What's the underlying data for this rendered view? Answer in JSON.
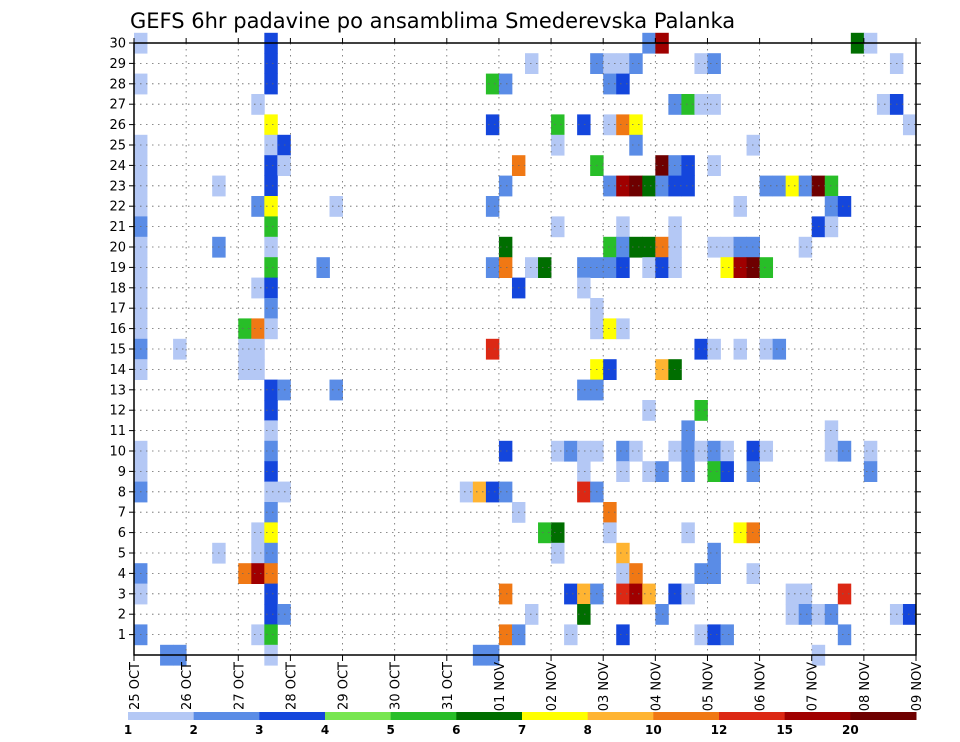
{
  "chart_data": {
    "type": "heatmap",
    "title": "GEFS 6hr padavine po ansamblima Smederevska Palanka",
    "x_tick_labels": [
      "25 OCT",
      "26 OCT",
      "27 OCT",
      "28 OCT",
      "29 OCT",
      "30 OCT",
      "31 OCT",
      "01 NOV",
      "02 NOV",
      "03 NOV",
      "04 NOV",
      "05 NOV",
      "06 NOV",
      "07 NOV",
      "08 NOV",
      "09 NOV"
    ],
    "y_tick_labels": [
      "1",
      "2",
      "3",
      "4",
      "5",
      "6",
      "7",
      "8",
      "9",
      "10",
      "11",
      "12",
      "13",
      "14",
      "15",
      "16",
      "17",
      "18",
      "19",
      "20",
      "21",
      "22",
      "23",
      "24",
      "25",
      "26",
      "27",
      "28",
      "29",
      "30"
    ],
    "xlim": [
      0,
      60
    ],
    "ylim": [
      0,
      30
    ],
    "grid": true,
    "legend": {
      "placement": "bottom",
      "labels": [
        "1",
        "2",
        "3",
        "4",
        "5",
        "6",
        "7",
        "8",
        "10",
        "12",
        "15",
        "20"
      ],
      "colors": [
        "#b4c8f5",
        "#5a8ce6",
        "#1446dc",
        "#78e650",
        "#28be28",
        "#006e00",
        "#ffff00",
        "#ffb432",
        "#f07814",
        "#dc2814",
        "#a00000",
        "#6e0000"
      ]
    },
    "cells": [
      [
        0,
        30,
        1
      ],
      [
        10,
        30,
        3
      ],
      [
        39,
        30,
        2
      ],
      [
        40,
        30,
        15
      ],
      [
        55,
        30,
        6
      ],
      [
        56,
        30,
        1
      ],
      [
        10,
        29,
        3
      ],
      [
        30,
        29,
        1
      ],
      [
        35,
        29,
        2
      ],
      [
        36,
        29,
        1
      ],
      [
        37,
        29,
        1
      ],
      [
        38,
        29,
        2
      ],
      [
        43,
        29,
        1
      ],
      [
        44,
        29,
        2
      ],
      [
        58,
        29,
        1
      ],
      [
        0,
        28,
        1
      ],
      [
        10,
        28,
        3
      ],
      [
        27,
        28,
        5
      ],
      [
        28,
        28,
        2
      ],
      [
        36,
        28,
        2
      ],
      [
        37,
        28,
        3
      ],
      [
        9,
        27,
        1
      ],
      [
        41,
        27,
        2
      ],
      [
        42,
        27,
        5
      ],
      [
        43,
        27,
        1
      ],
      [
        44,
        27,
        1
      ],
      [
        57,
        27,
        1
      ],
      [
        58,
        27,
        3
      ],
      [
        10,
        26,
        7
      ],
      [
        27,
        26,
        3
      ],
      [
        32,
        26,
        5
      ],
      [
        34,
        26,
        3
      ],
      [
        36,
        26,
        1
      ],
      [
        37,
        26,
        10
      ],
      [
        38,
        26,
        7
      ],
      [
        59,
        26,
        1
      ],
      [
        0,
        25,
        1
      ],
      [
        10,
        25,
        1
      ],
      [
        11,
        25,
        3
      ],
      [
        32,
        25,
        1
      ],
      [
        38,
        25,
        2
      ],
      [
        47,
        25,
        1
      ],
      [
        0,
        24,
        1
      ],
      [
        10,
        24,
        3
      ],
      [
        11,
        24,
        1
      ],
      [
        29,
        24,
        10
      ],
      [
        35,
        24,
        5
      ],
      [
        40,
        24,
        20
      ],
      [
        41,
        24,
        2
      ],
      [
        42,
        24,
        3
      ],
      [
        44,
        24,
        1
      ],
      [
        0,
        23,
        1
      ],
      [
        6,
        23,
        1
      ],
      [
        10,
        23,
        3
      ],
      [
        28,
        23,
        2
      ],
      [
        36,
        23,
        2
      ],
      [
        37,
        23,
        15
      ],
      [
        38,
        23,
        20
      ],
      [
        39,
        23,
        6
      ],
      [
        40,
        23,
        2
      ],
      [
        41,
        23,
        3
      ],
      [
        42,
        23,
        3
      ],
      [
        48,
        23,
        2
      ],
      [
        49,
        23,
        2
      ],
      [
        50,
        23,
        7
      ],
      [
        51,
        23,
        2
      ],
      [
        52,
        23,
        20
      ],
      [
        53,
        23,
        5
      ],
      [
        0,
        22,
        1
      ],
      [
        9,
        22,
        2
      ],
      [
        10,
        22,
        7
      ],
      [
        15,
        22,
        1
      ],
      [
        27,
        22,
        2
      ],
      [
        46,
        22,
        1
      ],
      [
        53,
        22,
        2
      ],
      [
        54,
        22,
        3
      ],
      [
        0,
        21,
        2
      ],
      [
        10,
        21,
        5
      ],
      [
        32,
        21,
        1
      ],
      [
        37,
        21,
        1
      ],
      [
        41,
        21,
        1
      ],
      [
        52,
        21,
        3
      ],
      [
        53,
        21,
        1
      ],
      [
        0,
        20,
        1
      ],
      [
        6,
        20,
        2
      ],
      [
        10,
        20,
        1
      ],
      [
        28,
        20,
        6
      ],
      [
        36,
        20,
        5
      ],
      [
        37,
        20,
        2
      ],
      [
        38,
        20,
        6
      ],
      [
        39,
        20,
        6
      ],
      [
        40,
        20,
        10
      ],
      [
        41,
        20,
        1
      ],
      [
        44,
        20,
        1
      ],
      [
        45,
        20,
        1
      ],
      [
        46,
        20,
        2
      ],
      [
        47,
        20,
        2
      ],
      [
        51,
        20,
        1
      ],
      [
        0,
        19,
        1
      ],
      [
        10,
        19,
        5
      ],
      [
        14,
        19,
        2
      ],
      [
        27,
        19,
        2
      ],
      [
        28,
        19,
        10
      ],
      [
        30,
        19,
        1
      ],
      [
        31,
        19,
        6
      ],
      [
        34,
        19,
        2
      ],
      [
        35,
        19,
        2
      ],
      [
        36,
        19,
        2
      ],
      [
        37,
        19,
        3
      ],
      [
        39,
        19,
        1
      ],
      [
        40,
        19,
        3
      ],
      [
        41,
        19,
        1
      ],
      [
        45,
        19,
        7
      ],
      [
        46,
        19,
        15
      ],
      [
        47,
        19,
        20
      ],
      [
        48,
        19,
        5
      ],
      [
        0,
        18,
        1
      ],
      [
        9,
        18,
        1
      ],
      [
        10,
        18,
        3
      ],
      [
        29,
        18,
        3
      ],
      [
        34,
        18,
        1
      ],
      [
        0,
        17,
        1
      ],
      [
        10,
        17,
        2
      ],
      [
        35,
        17,
        1
      ],
      [
        0,
        16,
        1
      ],
      [
        8,
        16,
        5
      ],
      [
        9,
        16,
        10
      ],
      [
        10,
        16,
        1
      ],
      [
        35,
        16,
        1
      ],
      [
        36,
        16,
        7
      ],
      [
        37,
        16,
        1
      ],
      [
        0,
        15,
        2
      ],
      [
        3,
        15,
        1
      ],
      [
        8,
        15,
        1
      ],
      [
        9,
        15,
        1
      ],
      [
        27,
        15,
        12
      ],
      [
        43,
        15,
        3
      ],
      [
        44,
        15,
        1
      ],
      [
        46,
        15,
        1
      ],
      [
        48,
        15,
        1
      ],
      [
        49,
        15,
        2
      ],
      [
        0,
        14,
        1
      ],
      [
        8,
        14,
        1
      ],
      [
        9,
        14,
        1
      ],
      [
        35,
        14,
        7
      ],
      [
        36,
        14,
        3
      ],
      [
        40,
        14,
        8
      ],
      [
        41,
        14,
        6
      ],
      [
        10,
        13,
        3
      ],
      [
        11,
        13,
        2
      ],
      [
        15,
        13,
        2
      ],
      [
        34,
        13,
        2
      ],
      [
        35,
        13,
        2
      ],
      [
        10,
        12,
        3
      ],
      [
        39,
        12,
        1
      ],
      [
        43,
        12,
        5
      ],
      [
        10,
        11,
        1
      ],
      [
        42,
        11,
        2
      ],
      [
        53,
        11,
        1
      ],
      [
        0,
        10,
        1
      ],
      [
        10,
        10,
        2
      ],
      [
        28,
        10,
        3
      ],
      [
        32,
        10,
        1
      ],
      [
        33,
        10,
        2
      ],
      [
        34,
        10,
        1
      ],
      [
        35,
        10,
        1
      ],
      [
        37,
        10,
        2
      ],
      [
        38,
        10,
        1
      ],
      [
        41,
        10,
        1
      ],
      [
        42,
        10,
        2
      ],
      [
        43,
        10,
        1
      ],
      [
        44,
        10,
        2
      ],
      [
        45,
        10,
        1
      ],
      [
        47,
        10,
        3
      ],
      [
        48,
        10,
        1
      ],
      [
        53,
        10,
        1
      ],
      [
        54,
        10,
        2
      ],
      [
        56,
        10,
        1
      ],
      [
        0,
        9,
        1
      ],
      [
        10,
        9,
        3
      ],
      [
        34,
        9,
        1
      ],
      [
        37,
        9,
        1
      ],
      [
        39,
        9,
        1
      ],
      [
        40,
        9,
        2
      ],
      [
        42,
        9,
        2
      ],
      [
        44,
        9,
        5
      ],
      [
        45,
        9,
        3
      ],
      [
        47,
        9,
        2
      ],
      [
        56,
        9,
        2
      ],
      [
        0,
        8,
        2
      ],
      [
        10,
        8,
        1
      ],
      [
        11,
        8,
        1
      ],
      [
        25,
        8,
        1
      ],
      [
        26,
        8,
        8
      ],
      [
        27,
        8,
        3
      ],
      [
        28,
        8,
        2
      ],
      [
        34,
        8,
        12
      ],
      [
        35,
        8,
        2
      ],
      [
        10,
        7,
        2
      ],
      [
        29,
        7,
        1
      ],
      [
        36,
        7,
        10
      ],
      [
        9,
        6,
        1
      ],
      [
        10,
        6,
        7
      ],
      [
        31,
        6,
        5
      ],
      [
        32,
        6,
        6
      ],
      [
        36,
        6,
        1
      ],
      [
        42,
        6,
        1
      ],
      [
        46,
        6,
        7
      ],
      [
        47,
        6,
        10
      ],
      [
        6,
        5,
        1
      ],
      [
        9,
        5,
        1
      ],
      [
        10,
        5,
        2
      ],
      [
        32,
        5,
        1
      ],
      [
        37,
        5,
        8
      ],
      [
        44,
        5,
        2
      ],
      [
        0,
        4,
        2
      ],
      [
        8,
        4,
        10
      ],
      [
        9,
        4,
        15
      ],
      [
        10,
        4,
        10
      ],
      [
        37,
        4,
        1
      ],
      [
        38,
        4,
        10
      ],
      [
        43,
        4,
        2
      ],
      [
        44,
        4,
        2
      ],
      [
        47,
        4,
        1
      ],
      [
        0,
        3,
        1
      ],
      [
        10,
        3,
        3
      ],
      [
        28,
        3,
        10
      ],
      [
        33,
        3,
        3
      ],
      [
        34,
        3,
        8
      ],
      [
        35,
        3,
        2
      ],
      [
        37,
        3,
        12
      ],
      [
        38,
        3,
        15
      ],
      [
        39,
        3,
        8
      ],
      [
        41,
        3,
        3
      ],
      [
        42,
        3,
        1
      ],
      [
        50,
        3,
        1
      ],
      [
        51,
        3,
        1
      ],
      [
        54,
        3,
        12
      ],
      [
        10,
        2,
        3
      ],
      [
        11,
        2,
        2
      ],
      [
        30,
        2,
        1
      ],
      [
        34,
        2,
        6
      ],
      [
        40,
        2,
        2
      ],
      [
        50,
        2,
        1
      ],
      [
        51,
        2,
        2
      ],
      [
        52,
        2,
        1
      ],
      [
        53,
        2,
        2
      ],
      [
        58,
        2,
        1
      ],
      [
        59,
        2,
        3
      ],
      [
        0,
        1,
        2
      ],
      [
        9,
        1,
        1
      ],
      [
        10,
        1,
        5
      ],
      [
        28,
        1,
        10
      ],
      [
        29,
        1,
        2
      ],
      [
        33,
        1,
        1
      ],
      [
        37,
        1,
        3
      ],
      [
        43,
        1,
        1
      ],
      [
        44,
        1,
        3
      ],
      [
        45,
        1,
        2
      ],
      [
        54,
        1,
        2
      ],
      [
        2,
        0,
        2
      ],
      [
        3,
        0,
        2
      ],
      [
        10,
        0,
        1
      ],
      [
        26,
        0,
        2
      ],
      [
        27,
        0,
        2
      ],
      [
        52,
        0,
        1
      ]
    ]
  }
}
